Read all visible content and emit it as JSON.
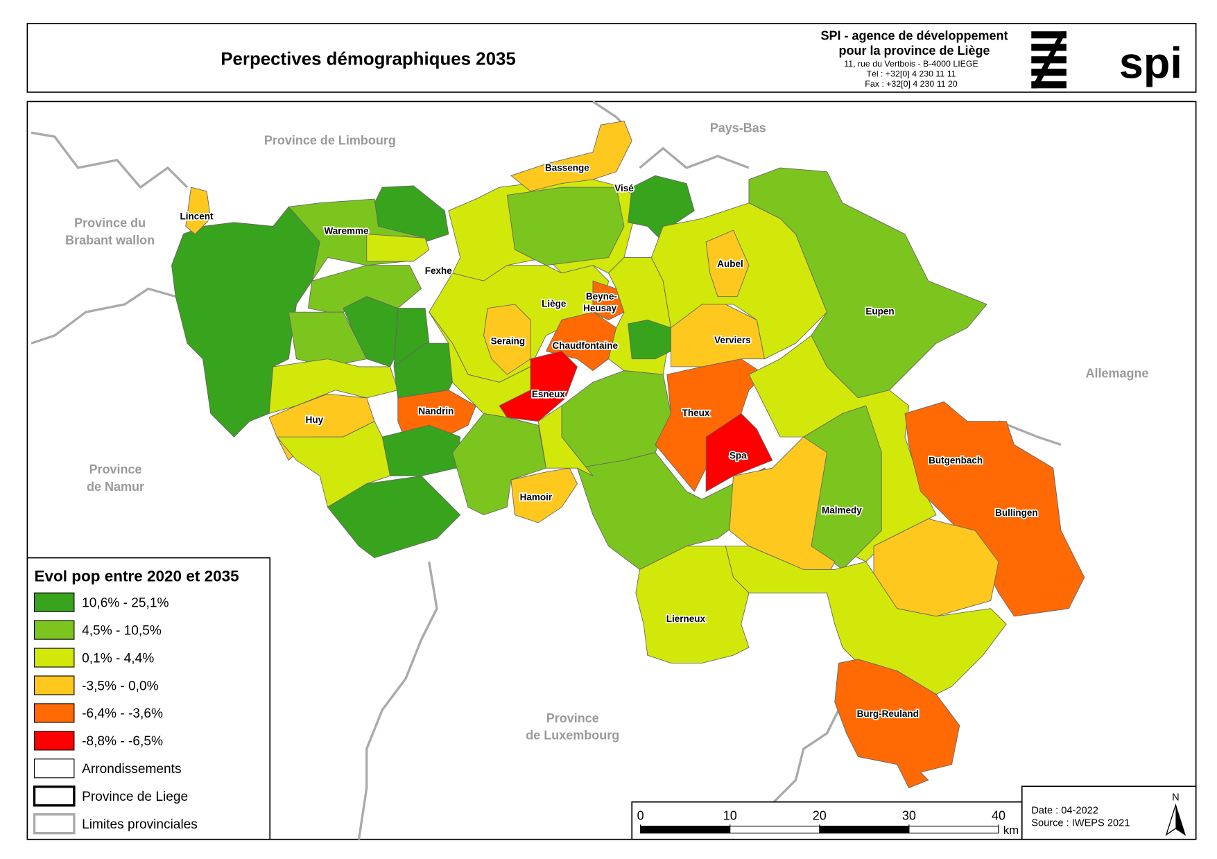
{
  "header": {
    "title": "Perpectives démographiques 2035",
    "org_name": "SPI - agence de développement",
    "org_sub": "pour la province de Liège",
    "address": "11, rue du Vertbois - B-4000 LIEGE",
    "tel": "Tél : +32[0] 4 230 11 11",
    "fax": "Fax : +32[0] 4 230 11 20",
    "logo": "spi"
  },
  "map": {
    "neighbors": [
      {
        "lines": [
          "Province de Limbourg"
        ]
      },
      {
        "lines": [
          "Pays-Bas"
        ]
      },
      {
        "lines": [
          "Province du",
          "Brabant wallon"
        ]
      },
      {
        "lines": [
          "Allemagne"
        ]
      },
      {
        "lines": [
          "Province",
          "de Namur"
        ]
      },
      {
        "lines": [
          "Province",
          "de Luxembourg"
        ]
      }
    ],
    "places": [
      {
        "lines": [
          "Bassenge"
        ]
      },
      {
        "lines": [
          "Visé"
        ]
      },
      {
        "lines": [
          "Lincent"
        ]
      },
      {
        "lines": [
          "Waremme"
        ]
      },
      {
        "lines": [
          "Fexhe"
        ]
      },
      {
        "lines": [
          "Aubel"
        ]
      },
      {
        "lines": [
          "Liège"
        ]
      },
      {
        "lines": [
          "Beyne-",
          "Heusay"
        ]
      },
      {
        "lines": [
          "Eupen"
        ]
      },
      {
        "lines": [
          "Seraing"
        ]
      },
      {
        "lines": [
          "Chaudfontaine"
        ]
      },
      {
        "lines": [
          "Verviers"
        ]
      },
      {
        "lines": [
          "Esneux"
        ]
      },
      {
        "lines": [
          "Theux"
        ]
      },
      {
        "lines": [
          "Nandrin"
        ]
      },
      {
        "lines": [
          "Huy"
        ]
      },
      {
        "lines": [
          "Spa"
        ]
      },
      {
        "lines": [
          "Butgenbach"
        ]
      },
      {
        "lines": [
          "Hamoir"
        ]
      },
      {
        "lines": [
          "Bullingen"
        ]
      },
      {
        "lines": [
          "Malmedy"
        ]
      },
      {
        "lines": [
          "Lierneux"
        ]
      },
      {
        "lines": [
          "Burg-Reuland"
        ]
      }
    ]
  },
  "legend": {
    "title": "Evol pop entre 2020 et 2035",
    "classes": [
      {
        "label": "10,6% - 25,1%",
        "color": "#38a31c"
      },
      {
        "label": "4,5% - 10,5%",
        "color": "#7cc51e"
      },
      {
        "label": "0,1% - 4,4%",
        "color": "#d2e80a"
      },
      {
        "label": "-3,5% - 0,0%",
        "color": "#ffc81e"
      },
      {
        "label": "-6,4% - -3,6%",
        "color": "#ff6a05"
      },
      {
        "label": "-8,8% - -6,5%",
        "color": "#ff0000"
      }
    ],
    "lines": [
      {
        "label": "Arrondissements"
      },
      {
        "label": "Province de Liege"
      },
      {
        "label": "Limites provinciales"
      }
    ]
  },
  "scale": {
    "ticks": [
      0,
      10,
      20,
      30,
      40
    ],
    "unit": "km"
  },
  "footer": {
    "date": "Date : 04-2022",
    "source": "Source : IWEPS 2021",
    "north": "N"
  }
}
